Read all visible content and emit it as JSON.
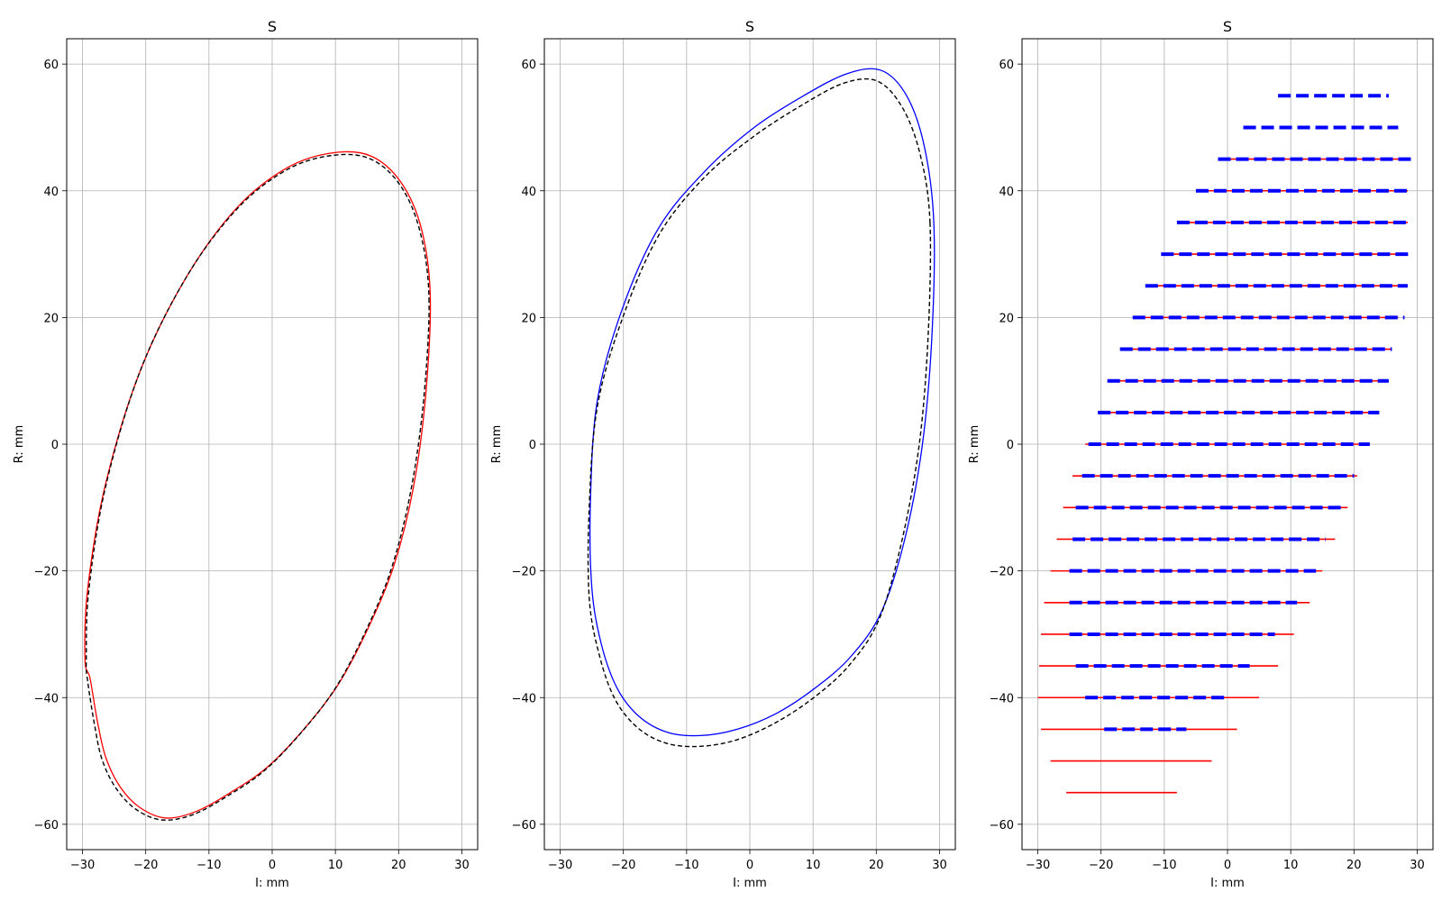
{
  "chart_data": [
    {
      "type": "line",
      "title": "S",
      "xlabel": "I: mm",
      "ylabel": "R: mm",
      "xlim": [
        -32.5,
        32.5
      ],
      "ylim": [
        -64,
        64
      ],
      "xticks": [
        -30,
        -20,
        -10,
        0,
        10,
        20,
        30
      ],
      "yticks": [
        -60,
        -40,
        -20,
        0,
        20,
        40,
        60
      ],
      "xtick_labels": [
        "−30",
        "−20",
        "−10",
        "0",
        "10",
        "20",
        "30"
      ],
      "ytick_labels": [
        "−60",
        "−40",
        "−20",
        "0",
        "20",
        "40",
        "60"
      ],
      "grid": true,
      "series": [
        {
          "style": "solid",
          "color": "#ff0000",
          "x": [
            25.0,
            24.3,
            22.4,
            19.3,
            15.2,
            10.4,
            5.0,
            -0.8,
            -6.6,
            -12.1,
            -16.9,
            -21.0,
            -24.1,
            -26.3,
            -27.6,
            -28.8,
            -29.6,
            -29.2,
            -26.4,
            -20.9,
            -13.5,
            -5.4,
            2.5,
            9.6,
            15.6,
            20.4,
            23.6,
            25.0
          ],
          "y": [
            23.5,
            8.0,
            -6.5,
            -19.0,
            -29.0,
            -38.0,
            -45.0,
            -51.0,
            -55.0,
            -58.0,
            -59.0,
            -57.3,
            -54.0,
            -49.5,
            -44.0,
            -37.0,
            -34.0,
            -23.0,
            -6.5,
            11.5,
            26.5,
            37.5,
            43.7,
            46.0,
            45.5,
            41.3,
            34.0,
            23.5
          ]
        },
        {
          "style": "dashed",
          "color": "#000000",
          "x": [
            24.8,
            24.0,
            22.0,
            18.9,
            14.8,
            10.0,
            4.6,
            -1.2,
            -7.0,
            -12.6,
            -17.5,
            -21.6,
            -24.7,
            -26.9,
            -28.1,
            -29.2,
            -29.4,
            -29.0,
            -26.3,
            -20.9,
            -13.5,
            -5.4,
            2.5,
            9.6,
            15.6,
            20.3,
            23.4,
            24.8
          ],
          "y": [
            23.0,
            7.5,
            -7.0,
            -19.5,
            -29.5,
            -38.5,
            -45.5,
            -51.5,
            -55.5,
            -58.5,
            -59.3,
            -57.6,
            -54.3,
            -49.8,
            -44.3,
            -37.3,
            -34.0,
            -23.0,
            -6.5,
            11.5,
            26.5,
            37.3,
            43.4,
            45.6,
            45.0,
            40.8,
            33.5,
            23.0
          ]
        }
      ]
    },
    {
      "type": "line",
      "title": "S",
      "xlabel": "I: mm",
      "ylabel": "R: mm",
      "xlim": [
        -32.5,
        32.5
      ],
      "ylim": [
        -64,
        64
      ],
      "xticks": [
        -30,
        -20,
        -10,
        0,
        10,
        20,
        30
      ],
      "yticks": [
        -60,
        -40,
        -20,
        0,
        20,
        40,
        60
      ],
      "xtick_labels": [
        "−30",
        "−20",
        "−10",
        "0",
        "10",
        "20",
        "30"
      ],
      "ytick_labels": [
        "−60",
        "−40",
        "−20",
        "0",
        "20",
        "40",
        "60"
      ],
      "grid": true,
      "series": [
        {
          "style": "solid",
          "color": "#0000ff",
          "x": [
            29.1,
            28.8,
            27.3,
            24.5,
            20.8,
            16.0,
            10.3,
            4.2,
            -2.0,
            -7.8,
            -13.0,
            -17.5,
            -21.0,
            -23.5,
            -25.0,
            -25.2,
            -24.1,
            -20.3,
            -14.5,
            -7.2,
            0.7,
            8.5,
            15.4,
            20.8,
            24.8,
            27.6,
            29.1
          ],
          "y": [
            35.0,
            17.0,
            0.0,
            -15.0,
            -26.5,
            -33.5,
            -38.5,
            -42.5,
            -45.0,
            -46.0,
            -45.5,
            -43.0,
            -38.5,
            -31.5,
            -22.5,
            -8.5,
            7.0,
            21.0,
            34.0,
            43.0,
            50.0,
            55.0,
            58.5,
            59.0,
            55.0,
            47.0,
            35.0
          ]
        },
        {
          "style": "dashed",
          "color": "#000000",
          "x": [
            28.5,
            28.2,
            26.8,
            24.1,
            20.5,
            15.8,
            10.1,
            4.0,
            -2.2,
            -8.0,
            -13.2,
            -17.7,
            -21.3,
            -23.8,
            -25.4,
            -25.4,
            -24.1,
            -20.1,
            -14.4,
            -7.3,
            0.5,
            8.2,
            14.9,
            20.2,
            24.2,
            27.0,
            28.5
          ],
          "y": [
            35.0,
            17.0,
            0.0,
            -15.0,
            -27.5,
            -34.8,
            -40.0,
            -44.0,
            -46.7,
            -47.7,
            -47.2,
            -44.8,
            -40.3,
            -33.3,
            -24.3,
            -10.0,
            6.0,
            20.0,
            33.0,
            42.0,
            48.5,
            53.5,
            57.0,
            57.3,
            53.0,
            45.5,
            35.0
          ]
        }
      ]
    },
    {
      "type": "line",
      "title": "S",
      "xlabel": "I: mm",
      "ylabel": "R: mm",
      "xlim": [
        -32.5,
        32.5
      ],
      "ylim": [
        -64,
        64
      ],
      "xticks": [
        -30,
        -20,
        -10,
        0,
        10,
        20,
        30
      ],
      "yticks": [
        -60,
        -40,
        -20,
        0,
        20,
        40,
        60
      ],
      "xtick_labels": [
        "−30",
        "−20",
        "−10",
        "0",
        "10",
        "20",
        "30"
      ],
      "ytick_labels": [
        "−60",
        "−40",
        "−20",
        "0",
        "20",
        "40",
        "60"
      ],
      "grid": true,
      "series": [
        {
          "style": "solid",
          "color": "#ff0000",
          "segments": [
            {
              "y": 0,
              "x": [
                -22.5,
                22.5
              ]
            },
            {
              "y": -5,
              "x": [
                -24.5,
                20.5
              ]
            },
            {
              "y": -10,
              "x": [
                -26,
                19
              ]
            },
            {
              "y": -15,
              "x": [
                -27,
                17
              ]
            },
            {
              "y": -20,
              "x": [
                -28,
                15
              ]
            },
            {
              "y": -25,
              "x": [
                -29,
                13
              ]
            },
            {
              "y": -30,
              "x": [
                -29.5,
                10.5
              ]
            },
            {
              "y": -35,
              "x": [
                -29.8,
                8
              ]
            },
            {
              "y": -40,
              "x": [
                -30,
                5
              ]
            },
            {
              "y": -45,
              "x": [
                -29.5,
                1.5
              ]
            },
            {
              "y": -50,
              "x": [
                -28,
                -2.5
              ]
            },
            {
              "y": -55,
              "x": [
                -25.5,
                -8
              ]
            },
            {
              "y": 5,
              "x": [
                -20.5,
                24
              ]
            },
            {
              "y": 10,
              "x": [
                -19,
                25.5
              ]
            },
            {
              "y": 15,
              "x": [
                -17,
                26
              ]
            },
            {
              "y": 20,
              "x": [
                -15,
                27
              ]
            },
            {
              "y": 25,
              "x": [
                -13,
                28
              ]
            },
            {
              "y": 30,
              "x": [
                -10.5,
                28.5
              ]
            },
            {
              "y": 35,
              "x": [
                -8,
                28.5
              ]
            },
            {
              "y": 40,
              "x": [
                -5,
                28.5
              ]
            },
            {
              "y": 45,
              "x": [
                -1.5,
                28.5
              ]
            }
          ]
        },
        {
          "style": "dashed",
          "color": "#0000ff",
          "segments": [
            {
              "y": 55,
              "x": [
                8,
                25.5
              ]
            },
            {
              "y": 50,
              "x": [
                2.5,
                27
              ]
            },
            {
              "y": 45,
              "x": [
                -1.5,
                29
              ]
            },
            {
              "y": 40,
              "x": [
                -5,
                29
              ]
            },
            {
              "y": 35,
              "x": [
                -8,
                29
              ]
            },
            {
              "y": 30,
              "x": [
                -10.5,
                29
              ]
            },
            {
              "y": 25,
              "x": [
                -13,
                28.5
              ]
            },
            {
              "y": 20,
              "x": [
                -15,
                28
              ]
            },
            {
              "y": 15,
              "x": [
                -17,
                26
              ]
            },
            {
              "y": 10,
              "x": [
                -19,
                25.5
              ]
            },
            {
              "y": 5,
              "x": [
                -20.5,
                24
              ]
            },
            {
              "y": 0,
              "x": [
                -22,
                22.5
              ]
            },
            {
              "y": -5,
              "x": [
                -23,
                20
              ]
            },
            {
              "y": -10,
              "x": [
                -24,
                18.5
              ]
            },
            {
              "y": -15,
              "x": [
                -24.5,
                15.5
              ]
            },
            {
              "y": -20,
              "x": [
                -25,
                14
              ]
            },
            {
              "y": -25,
              "x": [
                -25,
                11
              ]
            },
            {
              "y": -30,
              "x": [
                -25,
                7.5
              ]
            },
            {
              "y": -35,
              "x": [
                -24,
                3.5
              ]
            },
            {
              "y": -40,
              "x": [
                -22.5,
                -0.5
              ]
            },
            {
              "y": -45,
              "x": [
                -19.5,
                -6.5
              ]
            }
          ]
        }
      ]
    }
  ]
}
